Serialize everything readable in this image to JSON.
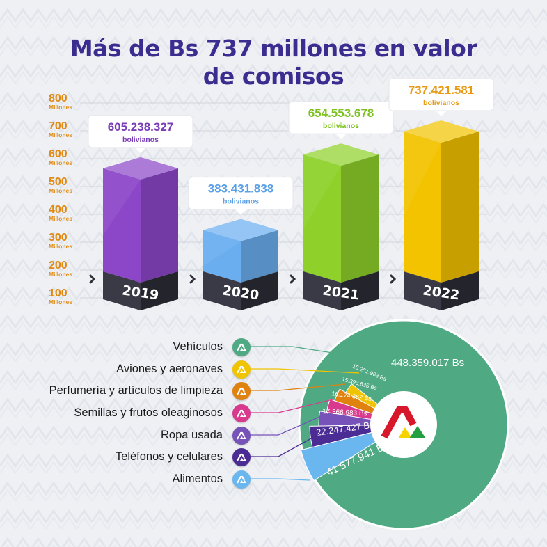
{
  "title": {
    "line1": "Más de Bs 737 millones en valor",
    "line2": "de comisos"
  },
  "colors": {
    "title": "#3b2c8f",
    "axis": "#e08a14",
    "bar_base": "#2f2f3a"
  },
  "chart_data": [
    {
      "type": "bar",
      "title": "",
      "xlabel": "",
      "ylabel": "",
      "y_unit": "Millones",
      "ylim": [
        100,
        800
      ],
      "yticks": [
        100,
        200,
        300,
        400,
        500,
        600,
        700,
        800
      ],
      "grid": true,
      "categories": [
        "2019",
        "2020",
        "2021",
        "2022"
      ],
      "values": [
        605238327,
        383431838,
        654553678,
        737421581
      ],
      "value_labels": [
        "605.238.327",
        "383.431.838",
        "654.553.678",
        "737.421.581"
      ],
      "value_unit": "bolivianos",
      "colors": [
        "#8c47c9",
        "#6aaef0",
        "#8fd12a",
        "#f3c300"
      ],
      "label_colors": [
        "#7a3db8",
        "#5aa0e6",
        "#7cc21e",
        "#e89a12"
      ]
    },
    {
      "type": "pie",
      "title": "",
      "categories": [
        "Vehículos",
        "Aviones y aeronaves",
        "Perfumería y artículos de limpieza",
        "Semillas y frutos oleaginosos",
        "Ropa usada",
        "Teléfonos y celulares",
        "Alimentos"
      ],
      "values": [
        448359017,
        15251963,
        15393635,
        16174362,
        17366983,
        22247427,
        41577941
      ],
      "value_labels": [
        "448.359.017 Bs",
        "15.251.963 Bs",
        "15.393.635 Bs",
        "16.174.362 Bs",
        "17.366.983 Bs",
        "22.247.427 Bs",
        "41.577.941 Bs"
      ],
      "colors": [
        "#4faa84",
        "#f0c400",
        "#e0820f",
        "#d93a8e",
        "#7752b8",
        "#4b2b94",
        "#6ab7f0"
      ],
      "legend": "left"
    }
  ],
  "legend_icon": "brand-logo-icon"
}
